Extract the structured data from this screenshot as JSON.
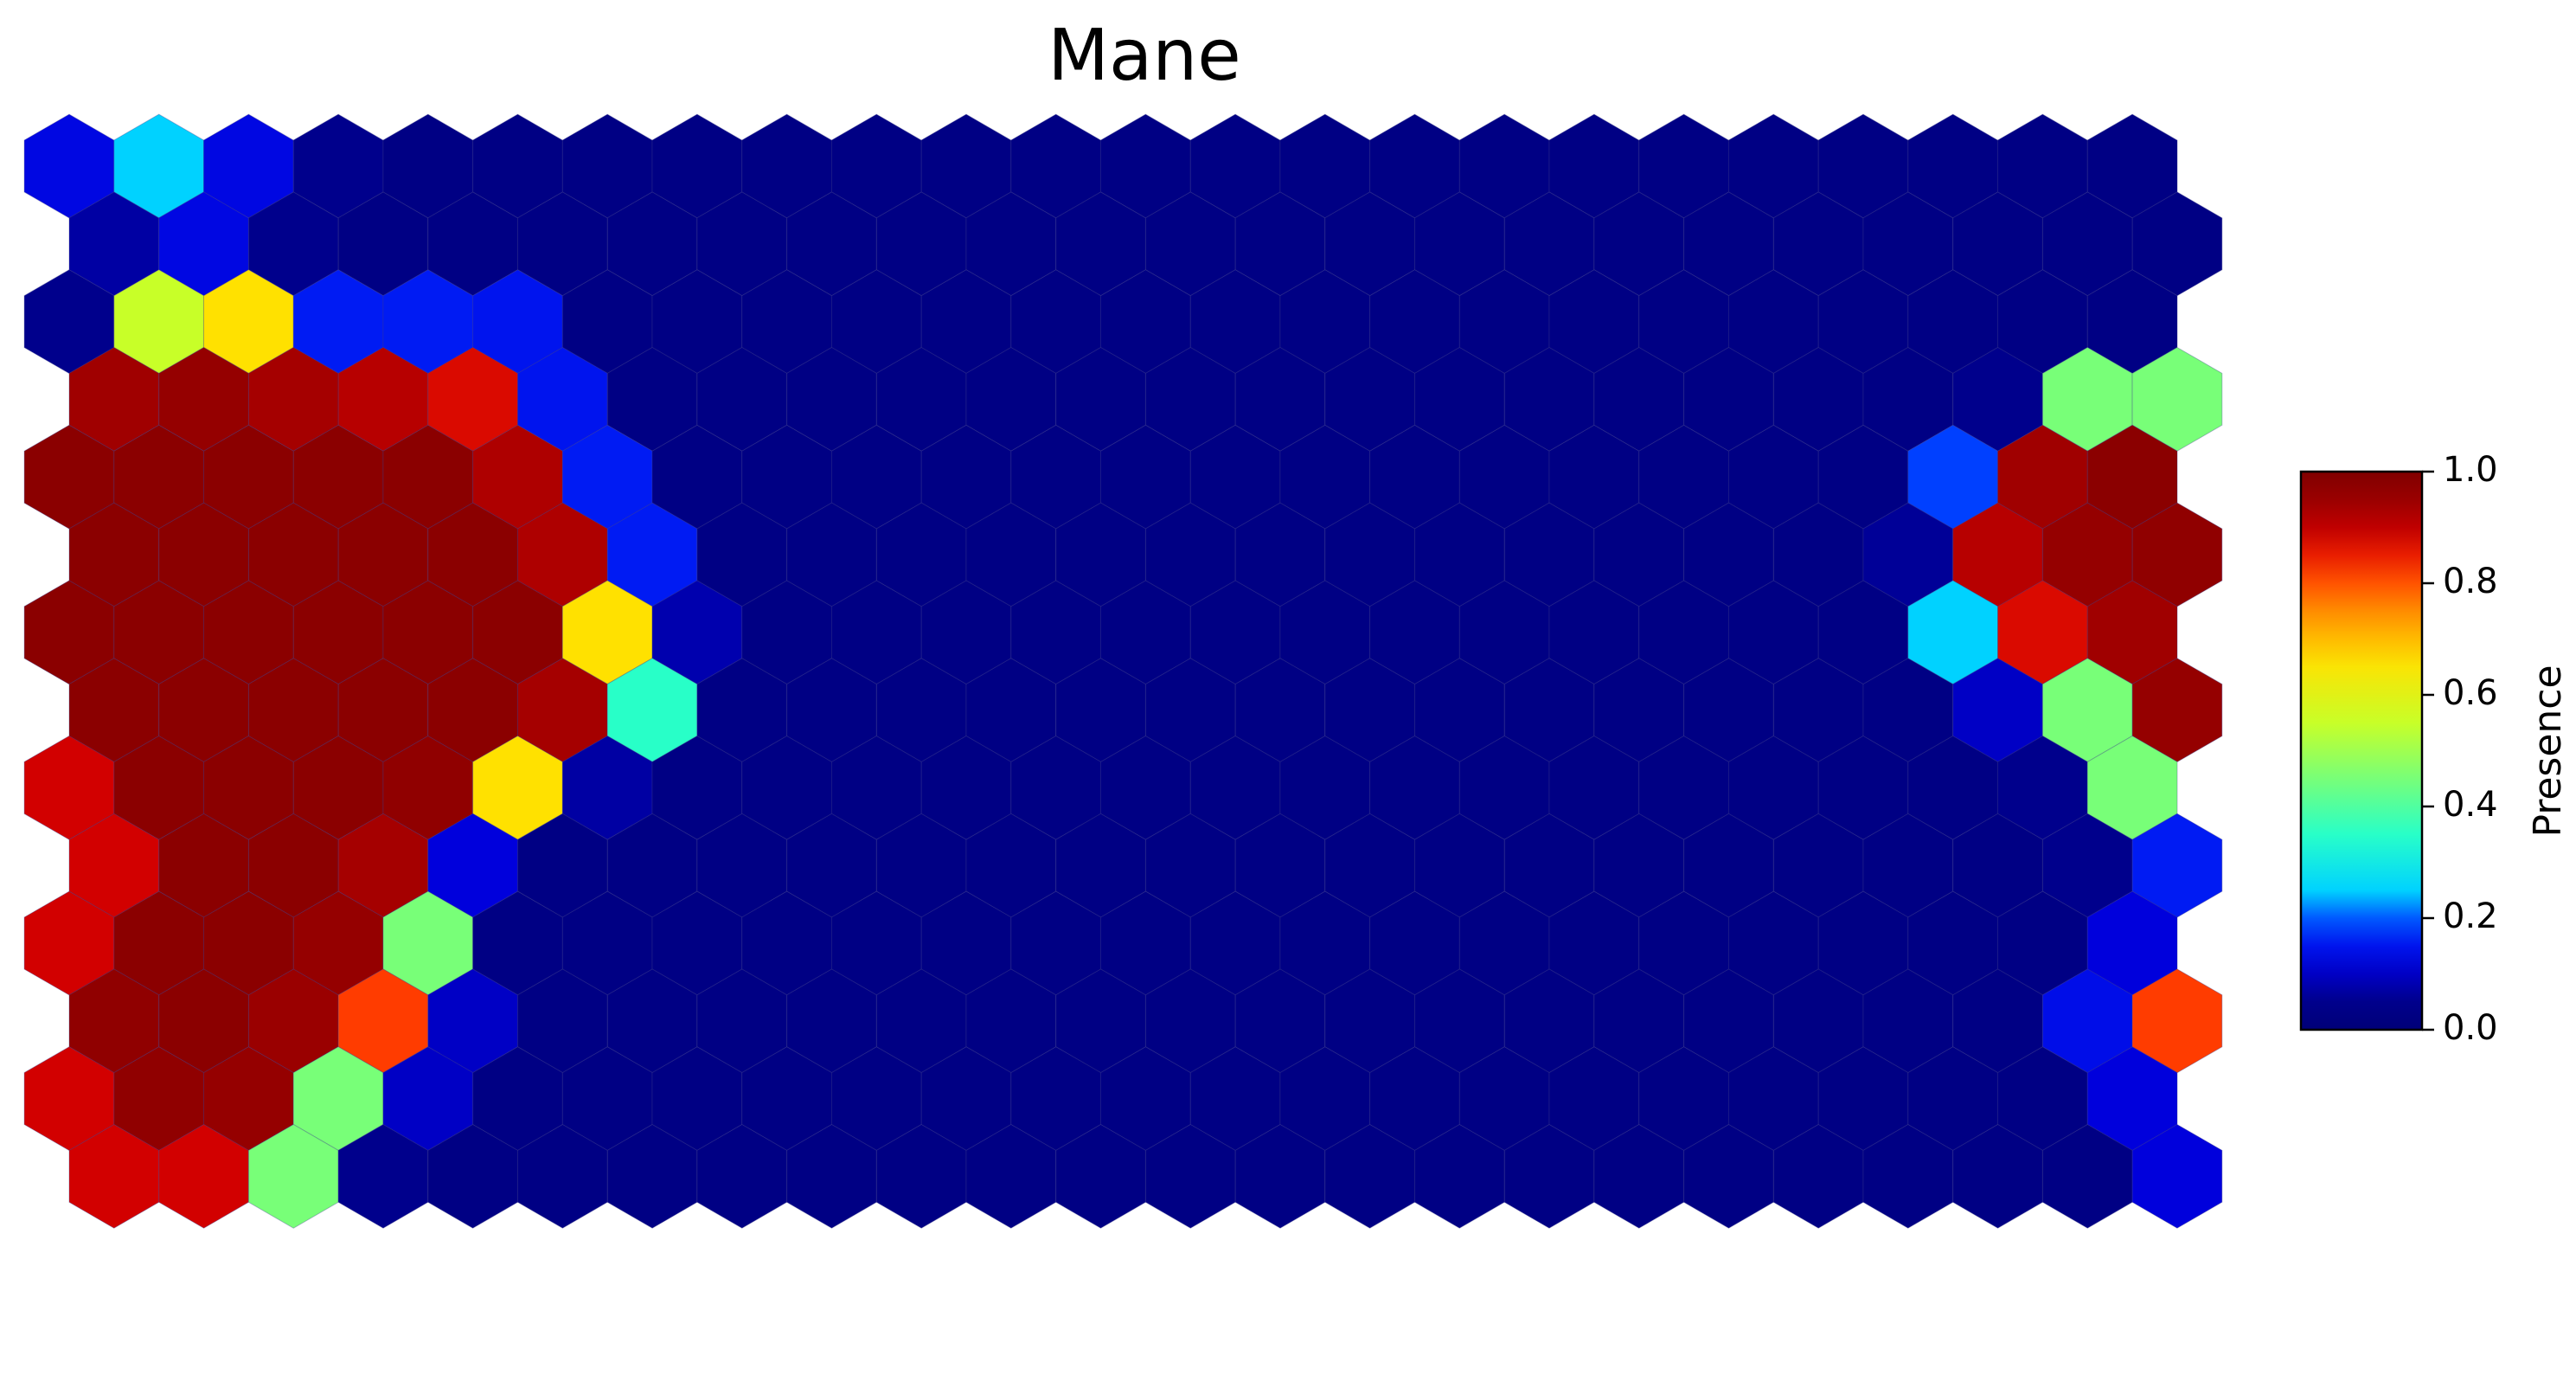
{
  "chart_data": {
    "type": "heatmap",
    "layout": "hexagonal",
    "title": "Mane",
    "columns": 24,
    "rows": 14,
    "grid": false,
    "legend": "colorbar-right",
    "colorbar": {
      "label": "Presence",
      "min": 0.0,
      "max": 1.0,
      "ticks": [
        0.0,
        0.2,
        0.4,
        0.6,
        0.8,
        1.0
      ],
      "tick_labels": [
        "0.0",
        "0.2",
        "0.4",
        "0.6",
        "0.8",
        "1.0"
      ],
      "colormap": "jet"
    },
    "values": [
      [
        0.13,
        0.25,
        0.13,
        0.05,
        0.03,
        0.03,
        0.03,
        0.03,
        0.03,
        0.03,
        0.03,
        0.03,
        0.03,
        0.03,
        0.03,
        0.03,
        0.03,
        0.03,
        0.03,
        0.03,
        0.03,
        0.03,
        0.03,
        0.03
      ],
      [
        0.07,
        0.13,
        0.05,
        0.03,
        0.03,
        0.03,
        0.03,
        0.03,
        0.03,
        0.03,
        0.03,
        0.03,
        0.03,
        0.03,
        0.03,
        0.03,
        0.03,
        0.03,
        0.03,
        0.03,
        0.03,
        0.03,
        0.03,
        0.03
      ],
      [
        0.05,
        0.55,
        0.66,
        0.16,
        0.16,
        0.15,
        0.03,
        0.03,
        0.03,
        0.03,
        0.03,
        0.03,
        0.03,
        0.03,
        0.03,
        0.03,
        0.03,
        0.03,
        0.03,
        0.03,
        0.03,
        0.03,
        0.03,
        0.03
      ],
      [
        0.94,
        0.96,
        0.93,
        0.91,
        0.87,
        0.15,
        0.03,
        0.03,
        0.03,
        0.03,
        0.03,
        0.03,
        0.03,
        0.03,
        0.03,
        0.03,
        0.03,
        0.03,
        0.03,
        0.03,
        0.03,
        0.05,
        0.45,
        0.45
      ],
      [
        0.98,
        0.98,
        0.98,
        0.98,
        0.98,
        0.92,
        0.16,
        0.03,
        0.03,
        0.03,
        0.03,
        0.03,
        0.03,
        0.03,
        0.03,
        0.03,
        0.03,
        0.03,
        0.03,
        0.03,
        0.03,
        0.19,
        0.94,
        0.98
      ],
      [
        0.98,
        0.98,
        0.98,
        0.98,
        0.98,
        0.92,
        0.16,
        0.03,
        0.03,
        0.03,
        0.03,
        0.03,
        0.03,
        0.03,
        0.03,
        0.03,
        0.03,
        0.03,
        0.03,
        0.03,
        0.06,
        0.91,
        0.96,
        0.97
      ],
      [
        0.98,
        0.98,
        0.98,
        0.98,
        0.98,
        0.98,
        0.66,
        0.08,
        0.03,
        0.03,
        0.03,
        0.03,
        0.03,
        0.03,
        0.03,
        0.03,
        0.03,
        0.03,
        0.03,
        0.03,
        0.03,
        0.25,
        0.87,
        0.94
      ],
      [
        0.98,
        0.98,
        0.98,
        0.98,
        0.98,
        0.93,
        0.35,
        0.03,
        0.03,
        0.03,
        0.03,
        0.03,
        0.03,
        0.03,
        0.03,
        0.03,
        0.03,
        0.03,
        0.03,
        0.03,
        0.03,
        0.1,
        0.45,
        0.96
      ],
      [
        0.88,
        0.98,
        0.98,
        0.98,
        0.97,
        0.66,
        0.07,
        0.03,
        0.03,
        0.03,
        0.03,
        0.03,
        0.03,
        0.03,
        0.03,
        0.03,
        0.03,
        0.03,
        0.03,
        0.03,
        0.03,
        0.03,
        0.05,
        0.45
      ],
      [
        0.88,
        0.98,
        0.98,
        0.93,
        0.12,
        0.03,
        0.03,
        0.03,
        0.03,
        0.03,
        0.03,
        0.03,
        0.03,
        0.03,
        0.03,
        0.03,
        0.03,
        0.03,
        0.03,
        0.03,
        0.03,
        0.03,
        0.05,
        0.16
      ],
      [
        0.88,
        0.98,
        0.98,
        0.96,
        0.45,
        0.03,
        0.03,
        0.03,
        0.03,
        0.03,
        0.03,
        0.03,
        0.03,
        0.03,
        0.03,
        0.03,
        0.03,
        0.03,
        0.03,
        0.03,
        0.03,
        0.03,
        0.03,
        0.12
      ],
      [
        0.97,
        0.98,
        0.95,
        0.82,
        0.1,
        0.03,
        0.03,
        0.03,
        0.03,
        0.03,
        0.03,
        0.03,
        0.03,
        0.03,
        0.03,
        0.03,
        0.03,
        0.03,
        0.03,
        0.03,
        0.03,
        0.03,
        0.14,
        0.82
      ],
      [
        0.88,
        0.97,
        0.96,
        0.45,
        0.1,
        0.03,
        0.03,
        0.03,
        0.03,
        0.03,
        0.03,
        0.03,
        0.03,
        0.03,
        0.03,
        0.03,
        0.03,
        0.03,
        0.03,
        0.03,
        0.03,
        0.03,
        0.03,
        0.12
      ],
      [
        0.88,
        0.88,
        0.45,
        0.05,
        0.03,
        0.03,
        0.03,
        0.03,
        0.03,
        0.03,
        0.03,
        0.03,
        0.03,
        0.03,
        0.03,
        0.03,
        0.03,
        0.03,
        0.03,
        0.03,
        0.03,
        0.03,
        0.03,
        0.12
      ]
    ]
  }
}
